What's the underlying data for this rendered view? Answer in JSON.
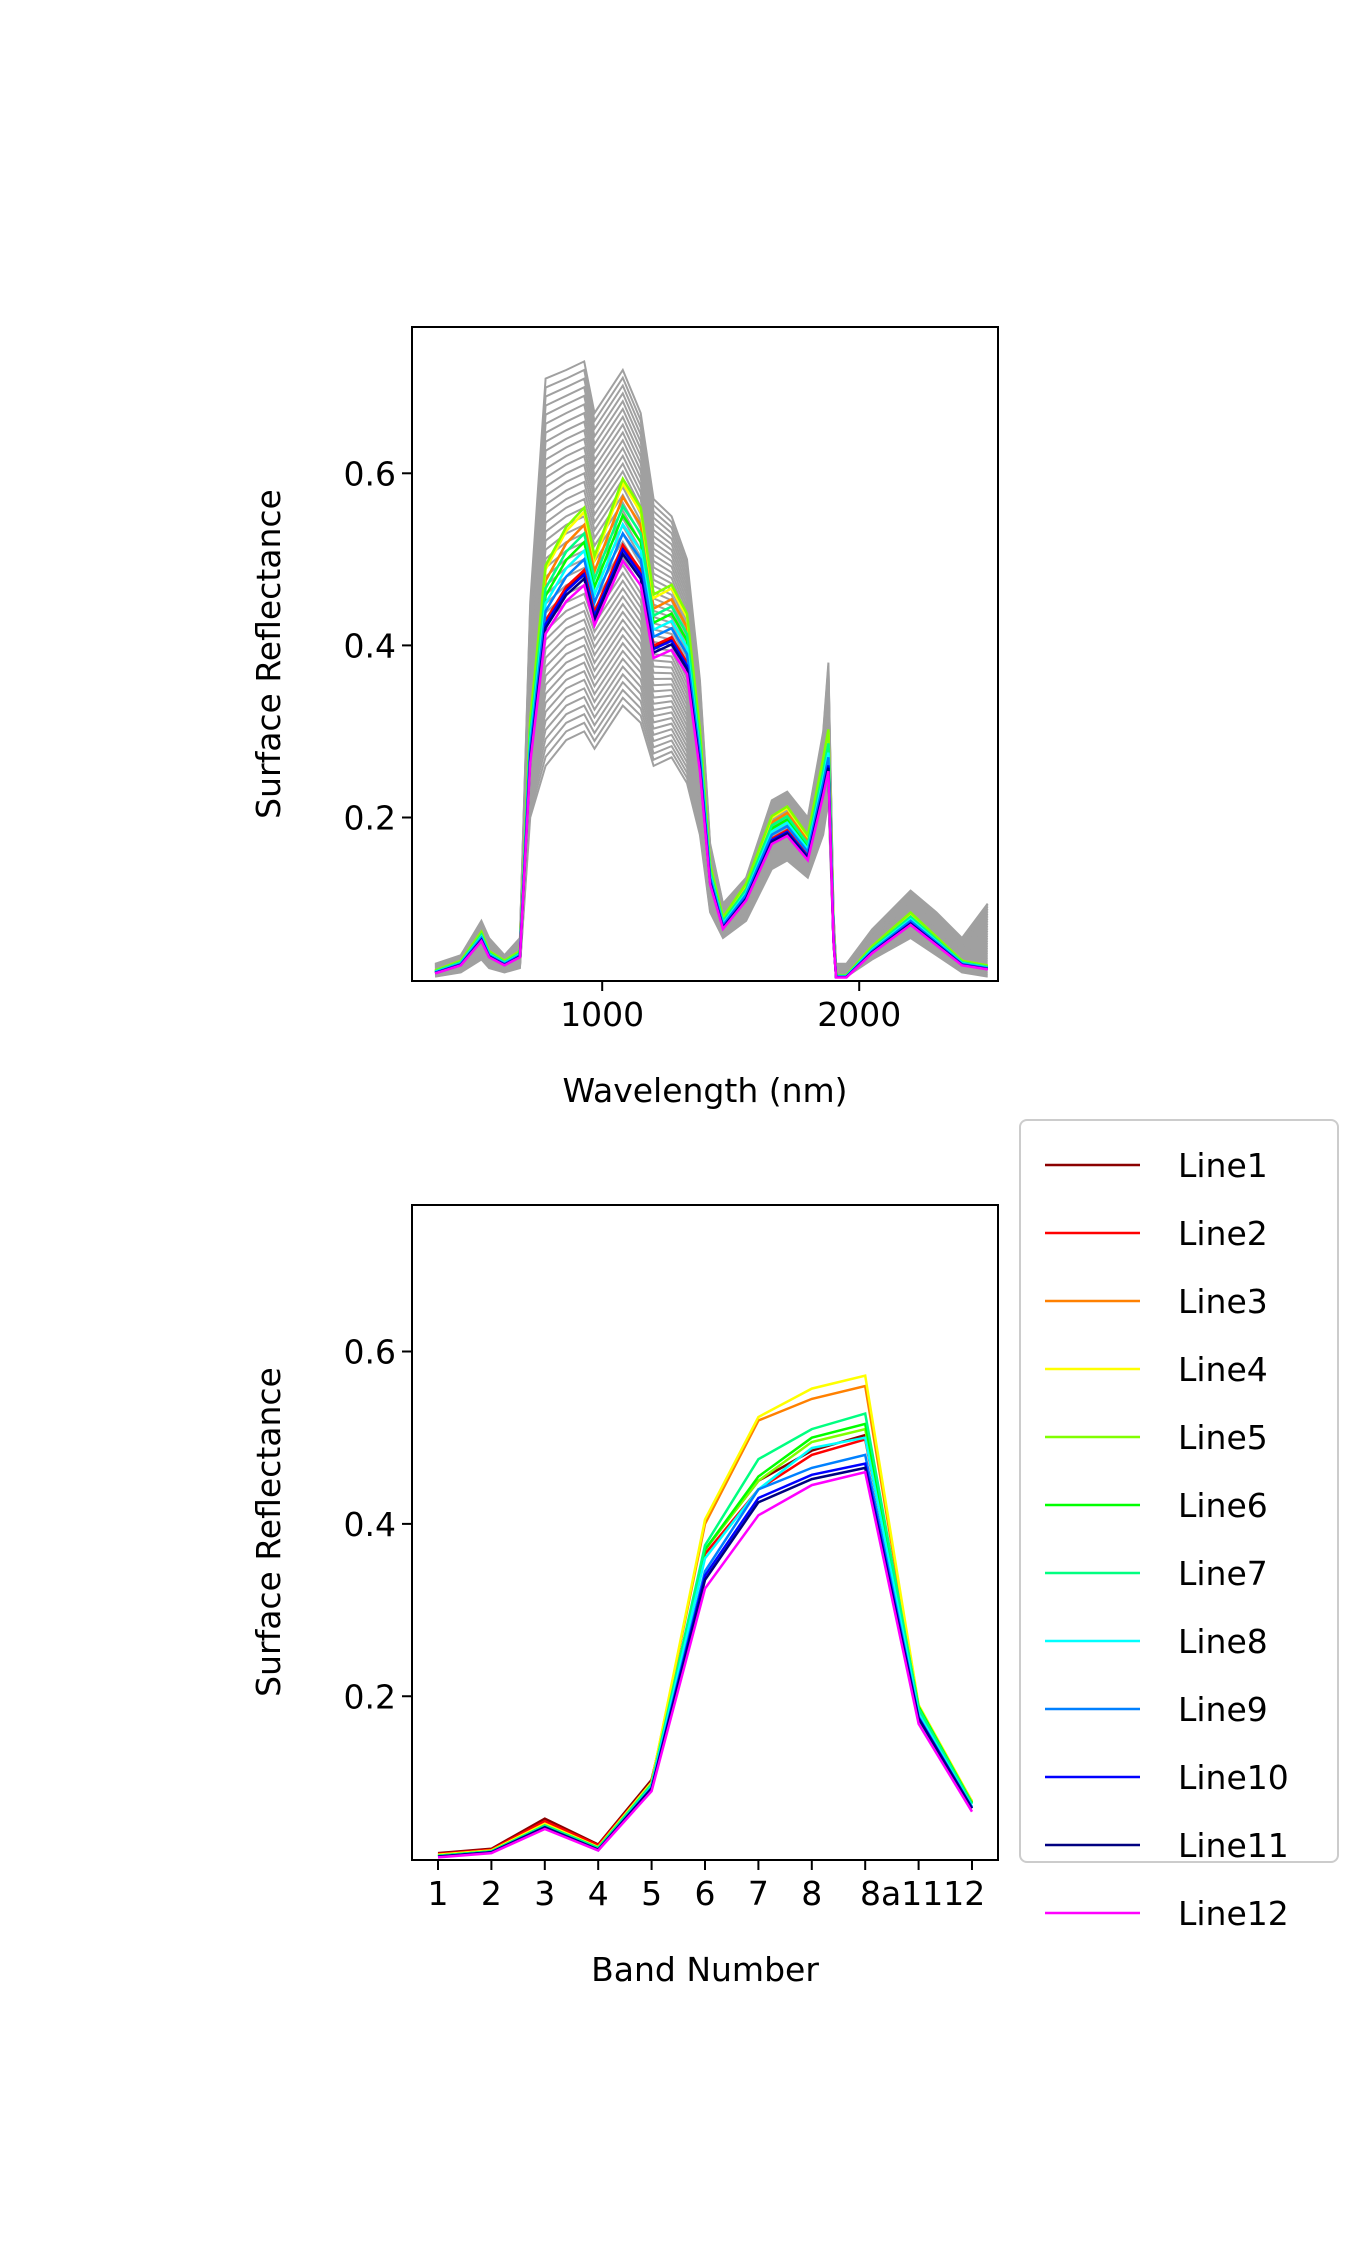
{
  "chart_data": [
    {
      "type": "line",
      "xlabel": "Wavelength (nm)",
      "ylabel": "Surface Reflectance",
      "xlim": [
        260,
        2540
      ],
      "ylim": [
        0.01,
        0.77
      ],
      "xticks": [
        1000,
        2000
      ],
      "xtick_labels": [
        "1000",
        "2000"
      ],
      "yticks": [
        0.2,
        0.4,
        0.6
      ],
      "ytick_labels": [
        "0.2",
        "0.4",
        "0.6"
      ],
      "grid": false,
      "background_series": {
        "color": "#a0a0a0",
        "count": 44,
        "x": [
          350,
          450,
          530,
          560,
          620,
          680,
          720,
          780,
          860,
          930,
          970,
          1080,
          1150,
          1200,
          1270,
          1330,
          1380,
          1420,
          1470,
          1560,
          1660,
          1720,
          1800,
          1860,
          1880,
          1900,
          1910,
          1950,
          2050,
          2200,
          2300,
          2400,
          2500
        ],
        "mean": [
          0.02,
          0.03,
          0.06,
          0.04,
          0.03,
          0.04,
          0.3,
          0.52,
          0.56,
          0.57,
          0.52,
          0.58,
          0.54,
          0.47,
          0.48,
          0.43,
          0.3,
          0.15,
          0.08,
          0.11,
          0.19,
          0.2,
          0.17,
          0.25,
          0.32,
          0.07,
          0.02,
          0.02,
          0.05,
          0.085,
          0.06,
          0.03,
          0.025
        ],
        "min": [
          0.015,
          0.02,
          0.035,
          0.025,
          0.02,
          0.025,
          0.2,
          0.26,
          0.29,
          0.3,
          0.28,
          0.33,
          0.31,
          0.26,
          0.27,
          0.24,
          0.18,
          0.09,
          0.06,
          0.08,
          0.14,
          0.15,
          0.13,
          0.18,
          0.22,
          0.05,
          0.015,
          0.015,
          0.035,
          0.06,
          0.04,
          0.02,
          0.015
        ],
        "max": [
          0.03,
          0.04,
          0.08,
          0.06,
          0.04,
          0.06,
          0.45,
          0.71,
          0.72,
          0.73,
          0.67,
          0.72,
          0.67,
          0.57,
          0.55,
          0.5,
          0.36,
          0.17,
          0.1,
          0.13,
          0.22,
          0.23,
          0.2,
          0.3,
          0.38,
          0.09,
          0.03,
          0.03,
          0.07,
          0.115,
          0.09,
          0.06,
          0.1
        ]
      },
      "series": [
        {
          "name": "Line1",
          "color": "#8b0000",
          "scale": 0.97
        },
        {
          "name": "Line2",
          "color": "#ff0000",
          "scale": 0.975
        },
        {
          "name": "Line3",
          "color": "#ff8000",
          "scale": 1.08
        },
        {
          "name": "Line4",
          "color": "#ffff00",
          "scale": 1.11
        },
        {
          "name": "Line5",
          "color": "#80ff00",
          "scale": 1.12
        },
        {
          "name": "Line6",
          "color": "#00ff00",
          "scale": 1.04
        },
        {
          "name": "Line7",
          "color": "#00ff80",
          "scale": 1.06
        },
        {
          "name": "Line8",
          "color": "#00ffff",
          "scale": 1.02
        },
        {
          "name": "Line9",
          "color": "#0080ff",
          "scale": 1.0
        },
        {
          "name": "Line10",
          "color": "#0000ff",
          "scale": 0.965
        },
        {
          "name": "Line11",
          "color": "#000080",
          "scale": 0.955
        },
        {
          "name": "Line12",
          "color": "#ff00ff",
          "scale": 0.94
        }
      ],
      "series_base": {
        "x": [
          350,
          450,
          530,
          560,
          620,
          680,
          720,
          780,
          860,
          930,
          970,
          1080,
          1150,
          1200,
          1270,
          1330,
          1380,
          1420,
          1470,
          1560,
          1660,
          1720,
          1800,
          1860,
          1880,
          1900,
          1910,
          1950,
          2050,
          2200,
          2300,
          2400,
          2500
        ],
        "y": [
          0.02,
          0.03,
          0.06,
          0.04,
          0.03,
          0.04,
          0.28,
          0.44,
          0.48,
          0.5,
          0.45,
          0.53,
          0.5,
          0.41,
          0.42,
          0.39,
          0.27,
          0.13,
          0.075,
          0.11,
          0.18,
          0.19,
          0.16,
          0.24,
          0.27,
          0.06,
          0.015,
          0.015,
          0.045,
          0.08,
          0.055,
          0.03,
          0.025
        ]
      }
    },
    {
      "type": "line",
      "xlabel": "Band Number",
      "ylabel": "Surface Reflectance",
      "ylim": [
        0.01,
        0.77
      ],
      "yticks": [
        0.2,
        0.4,
        0.6
      ],
      "ytick_labels": [
        "0.2",
        "0.4",
        "0.6"
      ],
      "categories": [
        "1",
        "2",
        "3",
        "4",
        "5",
        "6",
        "7",
        "8",
        "8a",
        "11",
        "12"
      ],
      "tick_labels_shown": [
        "1",
        "2",
        "3",
        "4",
        "5",
        "6",
        "7",
        "8",
        "8a1112"
      ],
      "grid": false,
      "legend_position": "right, outside",
      "series": [
        {
          "name": "Line1",
          "color": "#8b0000",
          "values": [
            0.018,
            0.023,
            0.058,
            0.028,
            0.103,
            0.37,
            0.45,
            0.485,
            0.503,
            0.185,
            0.078
          ]
        },
        {
          "name": "Line2",
          "color": "#ff0000",
          "values": [
            0.017,
            0.022,
            0.055,
            0.027,
            0.1,
            0.365,
            0.44,
            0.48,
            0.498,
            0.182,
            0.077
          ]
        },
        {
          "name": "Line3",
          "color": "#ff8000",
          "values": [
            0.016,
            0.021,
            0.052,
            0.025,
            0.1,
            0.4,
            0.52,
            0.545,
            0.56,
            0.188,
            0.077
          ]
        },
        {
          "name": "Line4",
          "color": "#ffff00",
          "values": [
            0.016,
            0.021,
            0.052,
            0.025,
            0.1,
            0.405,
            0.524,
            0.557,
            0.572,
            0.19,
            0.078
          ]
        },
        {
          "name": "Line5",
          "color": "#80ff00",
          "values": [
            0.015,
            0.02,
            0.05,
            0.024,
            0.097,
            0.37,
            0.45,
            0.495,
            0.51,
            0.187,
            0.076
          ]
        },
        {
          "name": "Line6",
          "color": "#00ff00",
          "values": [
            0.015,
            0.02,
            0.05,
            0.024,
            0.097,
            0.37,
            0.455,
            0.5,
            0.516,
            0.188,
            0.076
          ]
        },
        {
          "name": "Line7",
          "color": "#00ff80",
          "values": [
            0.015,
            0.02,
            0.05,
            0.024,
            0.098,
            0.375,
            0.475,
            0.51,
            0.528,
            0.186,
            0.075
          ]
        },
        {
          "name": "Line8",
          "color": "#00ffff",
          "values": [
            0.014,
            0.019,
            0.048,
            0.021,
            0.095,
            0.36,
            0.44,
            0.488,
            0.5,
            0.18,
            0.072
          ]
        },
        {
          "name": "Line9",
          "color": "#0080ff",
          "values": [
            0.014,
            0.019,
            0.048,
            0.022,
            0.094,
            0.345,
            0.44,
            0.465,
            0.48,
            0.176,
            0.071
          ]
        },
        {
          "name": "Line10",
          "color": "#0000ff",
          "values": [
            0.014,
            0.019,
            0.048,
            0.022,
            0.093,
            0.34,
            0.43,
            0.457,
            0.47,
            0.175,
            0.07
          ]
        },
        {
          "name": "Line11",
          "color": "#000080",
          "values": [
            0.014,
            0.019,
            0.048,
            0.022,
            0.093,
            0.335,
            0.425,
            0.452,
            0.465,
            0.174,
            0.07
          ]
        },
        {
          "name": "Line12",
          "color": "#ff00ff",
          "values": [
            0.013,
            0.018,
            0.046,
            0.021,
            0.09,
            0.325,
            0.41,
            0.445,
            0.46,
            0.168,
            0.066
          ]
        }
      ]
    }
  ]
}
